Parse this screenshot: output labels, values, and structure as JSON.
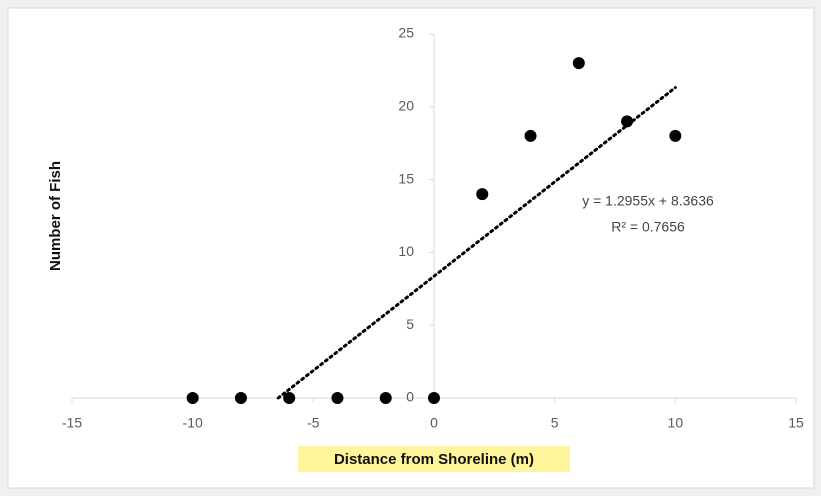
{
  "chart_data": {
    "type": "scatter",
    "x_label": "Distance  from Shoreline (m)",
    "y_label": "Number of Fish",
    "x": [
      -10,
      -8,
      -6,
      -4,
      -2,
      0,
      2,
      4,
      6,
      8,
      10
    ],
    "values": [
      0,
      0,
      0,
      0,
      0,
      0,
      14,
      18,
      23,
      19,
      18
    ],
    "color": "#000000",
    "xlim": [
      -15,
      15
    ],
    "xticks": [
      -15,
      -10,
      -5,
      0,
      5,
      10,
      15
    ],
    "ylim": [
      0,
      25
    ],
    "yticks": [
      0,
      5,
      10,
      15,
      20,
      25
    ],
    "grid": false,
    "trendline": {
      "slope": 1.2955,
      "intercept": 8.3636,
      "equation": "y = 1.2955x + 8.3636",
      "r_squared": "R² = 0.7656"
    }
  }
}
